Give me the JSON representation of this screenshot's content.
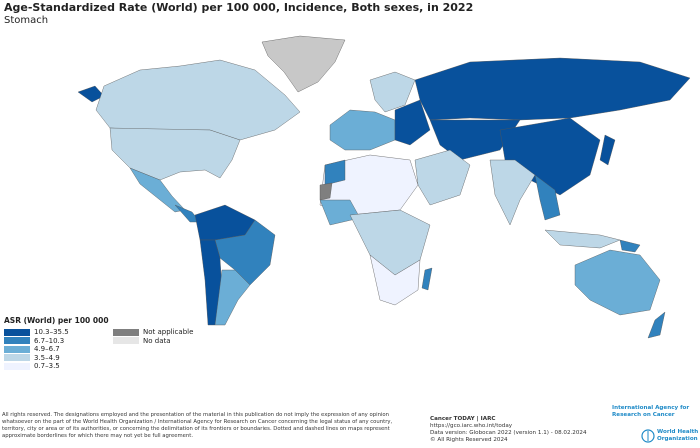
{
  "title": "Age-Standardized Rate (World) per 100 000, Incidence, Both sexes, in 2022",
  "subtitle": "Stomach",
  "legend": {
    "title": "ASR (World) per 100 000",
    "classes": [
      {
        "label": "10.3–35.5",
        "color": "#08519c"
      },
      {
        "label": "6.7–10.3",
        "color": "#3182bd"
      },
      {
        "label": "4.9–6.7",
        "color": "#6baed6"
      },
      {
        "label": "3.5–4.9",
        "color": "#bdd7e7"
      },
      {
        "label": "0.7–3.5",
        "color": "#eff3ff"
      }
    ],
    "other": [
      {
        "label": "Not applicable",
        "color": "#7f7f7f"
      },
      {
        "label": "No data",
        "color": "#e6e6e6"
      }
    ]
  },
  "footer": {
    "disclaimer": "All rights reserved. The designations employed and the presentation of the material in this publication do not imply the expression of any opinion whatsoever on the part of the World Health Organization / International Agency for Research on Cancer concerning the legal status of any country, territory, city or area or of its authorities, or concerning the delimitation of its frontiers or boundaries. Dotted and dashed lines on maps represent approximate borderlines for which there may not yet be full agreement.",
    "source_title": "Cancer TODAY | IARC",
    "url": "https://gco.iarc.who.int/today",
    "version": "Data version: Globocan 2022 (version 1.1) - 08.02.2024",
    "rights": "© All Rights Reserved 2024",
    "iarc_logo": "International Agency for Research on Cancer",
    "who_logo": "World Health Organization"
  }
}
